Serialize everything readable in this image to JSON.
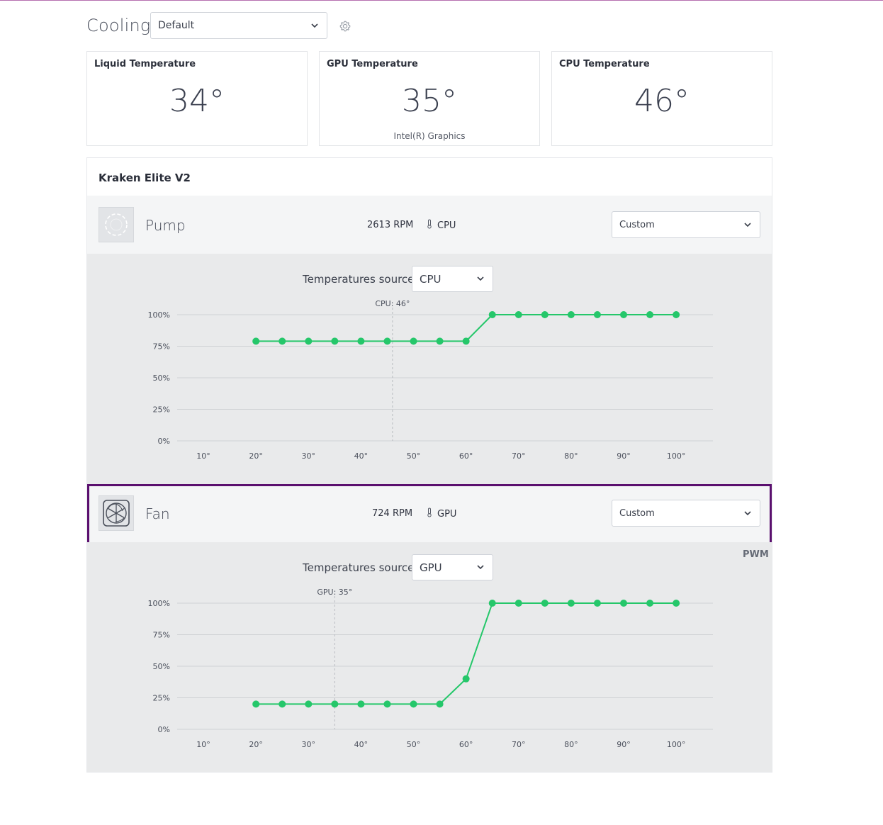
{
  "page": {
    "title": "Cooling"
  },
  "profile_select": {
    "value": "Default"
  },
  "icons": {
    "settings": "gear-icon",
    "dropdown": "chevron-down-icon",
    "sensor": "thermometer-icon",
    "pump": "pump-ring-icon",
    "fan": "fan-icon"
  },
  "cards": [
    {
      "title": "Liquid Temperature",
      "value": "34°",
      "subtitle": ""
    },
    {
      "title": "GPU Temperature",
      "value": "35°",
      "subtitle": "Intel(R) Graphics"
    },
    {
      "title": "CPU Temperature",
      "value": "46°",
      "subtitle": ""
    }
  ],
  "device": {
    "name": "Kraken Elite V2"
  },
  "channels": [
    {
      "label": "Pump",
      "rpm": "2613 RPM",
      "source": "CPU",
      "mode": "Custom",
      "temp_source_label": "Temperatures source:",
      "temp_source_value": "CPU",
      "marker_label": "CPU: 46°",
      "active": false
    },
    {
      "label": "Fan",
      "rpm": "724 RPM",
      "source": "GPU",
      "mode": "Custom",
      "temp_source_label": "Temperatures source:",
      "temp_source_value": "GPU",
      "marker_label": "GPU: 35°",
      "active": true,
      "badge": "PWM"
    }
  ],
  "colors": {
    "curve": "#25c76a",
    "active_border": "#5a0f6e",
    "grid": "#cfd1d4",
    "axis_text": "#4b505c"
  },
  "chart_data": [
    {
      "type": "line",
      "x": [
        20,
        25,
        30,
        35,
        40,
        45,
        50,
        55,
        60,
        65,
        70,
        75,
        80,
        85,
        90,
        95,
        100
      ],
      "series": [
        {
          "values": [
            79,
            79,
            79,
            79,
            79,
            79,
            79,
            79,
            79,
            100,
            100,
            100,
            100,
            100,
            100,
            100,
            100
          ]
        }
      ],
      "xlim": [
        5,
        107
      ],
      "ylim": [
        0,
        100
      ],
      "x_ticks": [
        "10°",
        "20°",
        "30°",
        "40°",
        "50°",
        "60°",
        "70°",
        "80°",
        "90°",
        "100°"
      ],
      "y_ticks": [
        "0%",
        "25%",
        "50%",
        "75%",
        "100%"
      ],
      "marker_x": 46,
      "grid": true
    },
    {
      "type": "line",
      "x": [
        20,
        25,
        30,
        35,
        40,
        45,
        50,
        55,
        60,
        65,
        70,
        75,
        80,
        85,
        90,
        95,
        100
      ],
      "series": [
        {
          "values": [
            20,
            20,
            20,
            20,
            20,
            20,
            20,
            20,
            40,
            100,
            100,
            100,
            100,
            100,
            100,
            100,
            100
          ]
        }
      ],
      "xlim": [
        5,
        107
      ],
      "ylim": [
        0,
        100
      ],
      "x_ticks": [
        "10°",
        "20°",
        "30°",
        "40°",
        "50°",
        "60°",
        "70°",
        "80°",
        "90°",
        "100°"
      ],
      "y_ticks": [
        "0%",
        "25%",
        "50%",
        "75%",
        "100%"
      ],
      "marker_x": 35,
      "grid": true
    }
  ]
}
